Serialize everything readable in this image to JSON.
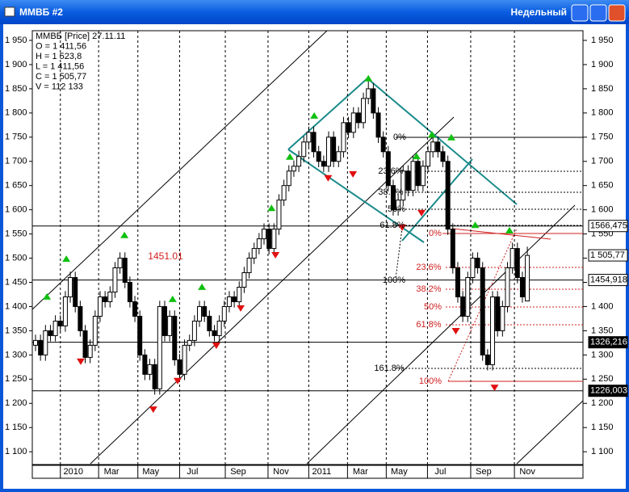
{
  "window_title": "ММВБ #2",
  "period": "Недельный",
  "chart_data": {
    "type": "candlestick",
    "info": [
      "ММВБ [Price] 27.11.11",
      "O = 1 411,56",
      "H = 1 523,8",
      "L = 1 411,56",
      "C = 1 505,77",
      "V = 112 133"
    ],
    "ohlc": [
      [
        1320,
        1342,
        1308,
        1330
      ],
      [
        1330,
        1342,
        1288,
        1300
      ],
      [
        1300,
        1362,
        1288,
        1350
      ],
      [
        1350,
        1362,
        1328,
        1340
      ],
      [
        1340,
        1382,
        1328,
        1370
      ],
      [
        1370,
        1382,
        1348,
        1360
      ],
      [
        1360,
        1432,
        1348,
        1420
      ],
      [
        1420,
        1472,
        1408,
        1460
      ],
      [
        1460,
        1472,
        1388,
        1400
      ],
      [
        1400,
        1412,
        1338,
        1350
      ],
      [
        1350,
        1362,
        1283,
        1295
      ],
      [
        1295,
        1332,
        1283,
        1320
      ],
      [
        1320,
        1392,
        1308,
        1380
      ],
      [
        1380,
        1432,
        1368,
        1420
      ],
      [
        1420,
        1432,
        1398,
        1410
      ],
      [
        1410,
        1442,
        1398,
        1430
      ],
      [
        1430,
        1492,
        1418,
        1480
      ],
      [
        1480,
        1512,
        1468,
        1500
      ],
      [
        1500,
        1512,
        1438,
        1450
      ],
      [
        1450,
        1462,
        1398,
        1410
      ],
      [
        1410,
        1422,
        1368,
        1380
      ],
      [
        1380,
        1392,
        1288,
        1300
      ],
      [
        1300,
        1312,
        1248,
        1260
      ],
      [
        1260,
        1292,
        1248,
        1280
      ],
      [
        1280,
        1292,
        1218,
        1230
      ],
      [
        1230,
        1412,
        1218,
        1400
      ],
      [
        1400,
        1412,
        1328,
        1340
      ],
      [
        1340,
        1392,
        1328,
        1380
      ],
      [
        1380,
        1392,
        1278,
        1290
      ],
      [
        1290,
        1302,
        1248,
        1260
      ],
      [
        1260,
        1332,
        1248,
        1320
      ],
      [
        1320,
        1342,
        1308,
        1330
      ],
      [
        1330,
        1382,
        1318,
        1370
      ],
      [
        1370,
        1412,
        1358,
        1400
      ],
      [
        1400,
        1412,
        1368,
        1380
      ],
      [
        1380,
        1392,
        1338,
        1350
      ],
      [
        1350,
        1362,
        1328,
        1340
      ],
      [
        1340,
        1382,
        1328,
        1370
      ],
      [
        1370,
        1412,
        1358,
        1400
      ],
      [
        1400,
        1432,
        1388,
        1420
      ],
      [
        1420,
        1432,
        1398,
        1410
      ],
      [
        1410,
        1452,
        1398,
        1440
      ],
      [
        1440,
        1482,
        1428,
        1470
      ],
      [
        1470,
        1512,
        1458,
        1500
      ],
      [
        1500,
        1532,
        1488,
        1520
      ],
      [
        1520,
        1552,
        1508,
        1540
      ],
      [
        1540,
        1572,
        1528,
        1560
      ],
      [
        1560,
        1572,
        1508,
        1520
      ],
      [
        1520,
        1572,
        1508,
        1560
      ],
      [
        1560,
        1632,
        1548,
        1620
      ],
      [
        1620,
        1662,
        1608,
        1650
      ],
      [
        1650,
        1692,
        1638,
        1680
      ],
      [
        1680,
        1702,
        1668,
        1690
      ],
      [
        1690,
        1722,
        1678,
        1710
      ],
      [
        1710,
        1752,
        1698,
        1740
      ],
      [
        1740,
        1772,
        1728,
        1760
      ],
      [
        1760,
        1772,
        1708,
        1720
      ],
      [
        1720,
        1732,
        1688,
        1700
      ],
      [
        1700,
        1712,
        1678,
        1690
      ],
      [
        1690,
        1762,
        1678,
        1750
      ],
      [
        1750,
        1762,
        1688,
        1700
      ],
      [
        1700,
        1732,
        1688,
        1720
      ],
      [
        1720,
        1792,
        1708,
        1780
      ],
      [
        1780,
        1792,
        1748,
        1760
      ],
      [
        1760,
        1812,
        1748,
        1800
      ],
      [
        1800,
        1812,
        1768,
        1780
      ],
      [
        1780,
        1842,
        1768,
        1830
      ],
      [
        1830,
        1872,
        1818,
        1850
      ],
      [
        1850,
        1862,
        1788,
        1800
      ],
      [
        1800,
        1812,
        1738,
        1750
      ],
      [
        1750,
        1762,
        1708,
        1720
      ],
      [
        1720,
        1732,
        1638,
        1650
      ],
      [
        1650,
        1662,
        1588,
        1600
      ],
      [
        1600,
        1632,
        1588,
        1620
      ],
      [
        1620,
        1692,
        1608,
        1680
      ],
      [
        1680,
        1692,
        1628,
        1640
      ],
      [
        1640,
        1712,
        1628,
        1700
      ],
      [
        1700,
        1712,
        1638,
        1650
      ],
      [
        1650,
        1702,
        1638,
        1690
      ],
      [
        1690,
        1732,
        1678,
        1720
      ],
      [
        1720,
        1752,
        1708,
        1740
      ],
      [
        1740,
        1752,
        1708,
        1720
      ],
      [
        1720,
        1732,
        1688,
        1700
      ],
      [
        1700,
        1712,
        1548,
        1560
      ],
      [
        1560,
        1572,
        1468,
        1480
      ],
      [
        1480,
        1492,
        1408,
        1420
      ],
      [
        1420,
        1432,
        1368,
        1380
      ],
      [
        1380,
        1472,
        1368,
        1460
      ],
      [
        1460,
        1512,
        1448,
        1500
      ],
      [
        1500,
        1512,
        1468,
        1480
      ],
      [
        1480,
        1492,
        1288,
        1300
      ],
      [
        1300,
        1312,
        1268,
        1280
      ],
      [
        1280,
        1432,
        1268,
        1420
      ],
      [
        1420,
        1432,
        1338,
        1350
      ],
      [
        1350,
        1412,
        1338,
        1400
      ],
      [
        1400,
        1492,
        1388,
        1480
      ],
      [
        1480,
        1532,
        1468,
        1520
      ],
      [
        1520,
        1532,
        1448,
        1460
      ],
      [
        1460,
        1472,
        1408,
        1420
      ],
      [
        1411.56,
        1523.8,
        1411.56,
        1505.77
      ]
    ],
    "up_signals": [
      [
        2.3,
        1421
      ],
      [
        6.2,
        1499
      ],
      [
        17.9,
        1548
      ],
      [
        27.6,
        1416
      ],
      [
        33.5,
        1441
      ],
      [
        47.5,
        1604
      ],
      [
        51.2,
        1710
      ],
      [
        56.1,
        1795
      ],
      [
        67,
        1872
      ],
      [
        76.7,
        1711
      ],
      [
        79.8,
        1756
      ],
      [
        83.7,
        1750
      ],
      [
        88.5,
        1569
      ],
      [
        95.4,
        1558
      ]
    ],
    "down_signals": [
      [
        9.1,
        1286
      ],
      [
        23.7,
        1187
      ],
      [
        28.6,
        1246
      ],
      [
        36.4,
        1319
      ],
      [
        41.3,
        1396
      ],
      [
        48.3,
        1506
      ],
      [
        58.9,
        1665
      ],
      [
        63.9,
        1673
      ],
      [
        73.8,
        1563
      ],
      [
        77.7,
        1593
      ],
      [
        84.6,
        1349
      ],
      [
        92.4,
        1232
      ]
    ],
    "levels": [
      {
        "value": 1566.475,
        "label": "1566,475"
      },
      {
        "value": 1454.918,
        "label": "1454,918"
      },
      {
        "value": 1326.216,
        "label": "1326,216"
      },
      {
        "value": 1226.003,
        "label": "1226,003"
      }
    ],
    "last_price": {
      "value": 1505.77,
      "label": "1 505,77"
    },
    "annotation": "1451.01",
    "fib_black": [
      "0%",
      "23.6%",
      "38.2%",
      "50%",
      "61.8%",
      "100%",
      "161.8%"
    ],
    "fib_red": [
      "0%",
      "23.6%",
      "38.2%",
      "50%",
      "61.8%",
      "100%"
    ],
    "xlim": [
      -0.65,
      110.2
    ],
    "ylim": [
      1073.6,
      1970
    ],
    "xticks": [
      {
        "value": 5,
        "label": "2010"
      },
      {
        "value": 12.7,
        "label": "Mar"
      },
      {
        "value": 20.6,
        "label": "May"
      },
      {
        "value": 29,
        "label": "Jul"
      },
      {
        "value": 38.2,
        "label": "Sep"
      },
      {
        "value": 46.8,
        "label": "Nov"
      },
      {
        "value": 55,
        "label": "2011"
      },
      {
        "value": 62.8,
        "label": "Mar"
      },
      {
        "value": 70.6,
        "label": "May"
      },
      {
        "value": 78.9,
        "label": "Jul"
      },
      {
        "value": 87.6,
        "label": "Sep"
      },
      {
        "value": 96.4,
        "label": "Nov"
      }
    ],
    "yticks": [
      {
        "value": 1100,
        "label": "1 100"
      },
      {
        "value": 1150,
        "label": "1 150"
      },
      {
        "value": 1200,
        "label": "1 200"
      },
      {
        "value": 1250,
        "label": "1 250"
      },
      {
        "value": 1300,
        "label": "1 300"
      },
      {
        "value": 1350,
        "label": "1 350"
      },
      {
        "value": 1400,
        "label": "1 400"
      },
      {
        "value": 1450,
        "label": "1 450"
      },
      {
        "value": 1500,
        "label": "1 500"
      },
      {
        "value": 1550,
        "label": "1 550"
      },
      {
        "value": 1600,
        "label": "1 600"
      },
      {
        "value": 1650,
        "label": "1 650"
      },
      {
        "value": 1700,
        "label": "1 700"
      },
      {
        "value": 1750,
        "label": "1 750"
      },
      {
        "value": 1800,
        "label": "1 800"
      },
      {
        "value": 1850,
        "label": "1 850"
      },
      {
        "value": 1900,
        "label": "1 900"
      },
      {
        "value": 1950,
        "label": "1 950"
      }
    ]
  }
}
